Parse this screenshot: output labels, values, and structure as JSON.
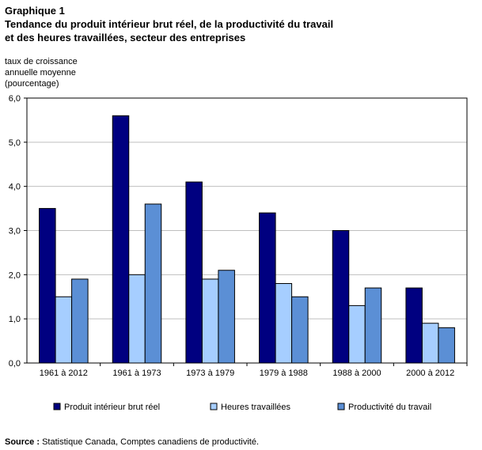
{
  "chart_label": "Graphique 1",
  "source": {
    "label": "Source :",
    "text": " Statistique Canada, Comptes canadiens de productivité."
  },
  "colors": {
    "Produit intérieur brut réel": "#000080",
    "Heures travaillées": "#a6ceff",
    "Productivité du travail": "#5b8fd5"
  },
  "chart_data": {
    "type": "bar",
    "title": "Tendance du produit intérieur brut réel, de la productivité du travail\net des heures travaillées, secteur des entreprises",
    "ylabel": "taux de croissance\nannuelle moyenne\n(pourcentage)",
    "xlabel": "",
    "categories": [
      "1961 à 2012",
      "1961 à 1973",
      "1973 à 1979",
      "1979 à 1988",
      "1988 à 2000",
      "2000 à 2012"
    ],
    "series": [
      {
        "name": "Produit intérieur brut réel",
        "values": [
          3.5,
          5.6,
          4.1,
          3.4,
          3.0,
          1.7
        ]
      },
      {
        "name": "Heures travaillées",
        "values": [
          1.5,
          2.0,
          1.9,
          1.8,
          1.3,
          0.9
        ]
      },
      {
        "name": "Productivité du travail",
        "values": [
          1.9,
          3.6,
          2.1,
          1.5,
          1.7,
          0.8
        ]
      }
    ],
    "ylim": [
      0,
      6
    ],
    "yticks": [
      "0,0",
      "1,0",
      "2,0",
      "3,0",
      "4,0",
      "5,0",
      "6,0"
    ],
    "grid": true,
    "legend": "bottom"
  }
}
